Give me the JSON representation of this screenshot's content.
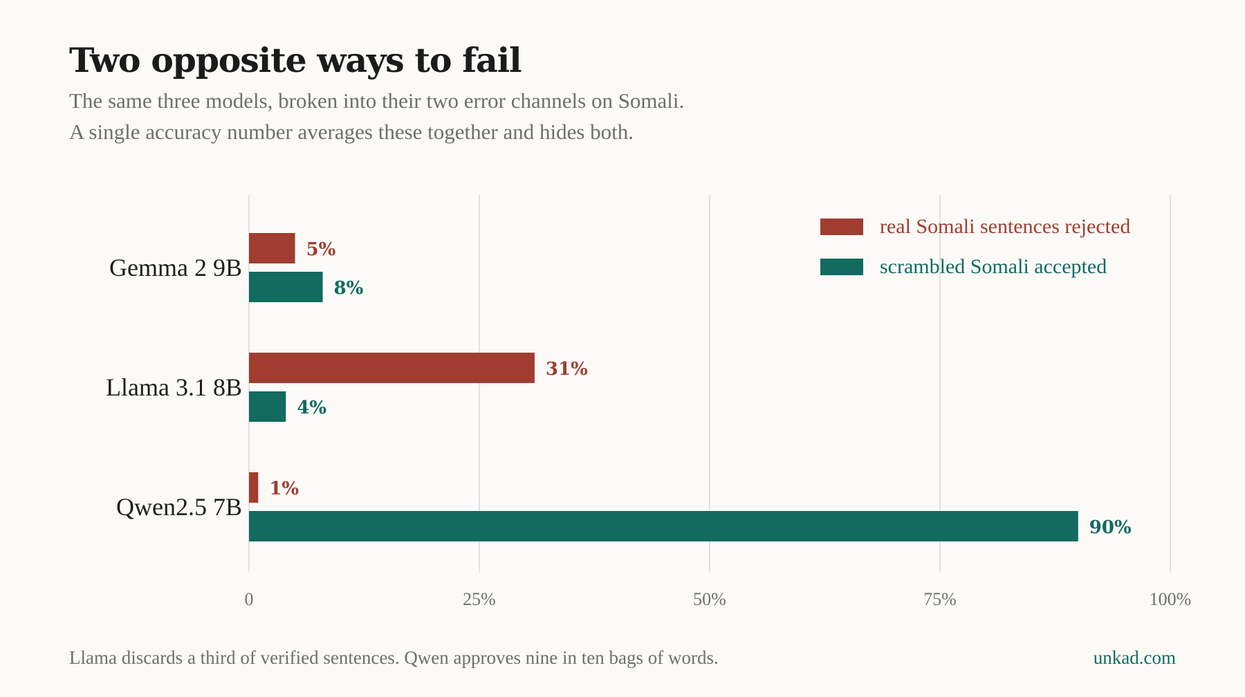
{
  "title": "Two opposite ways to fail",
  "subtitle_line1": "The same three models, broken into their two error channels on Somali.",
  "subtitle_line2": "A single accuracy number averages these together and hides both.",
  "footer": {
    "note": "Llama discards a third of verified sentences. Qwen approves nine in ten bags of words.",
    "brand": "unkad.com"
  },
  "colors": {
    "rejected": "#a03d30",
    "accepted": "#116b5e"
  },
  "chart_data": {
    "type": "bar",
    "orientation": "horizontal",
    "categories": [
      "Gemma 2 9B",
      "Llama 3.1 8B",
      "Qwen2.5 7B"
    ],
    "series": [
      {
        "name": "real Somali sentences rejected",
        "values": [
          5,
          31,
          1
        ],
        "labels": [
          "5%",
          "31%",
          "1%"
        ]
      },
      {
        "name": "scrambled Somali accepted",
        "values": [
          8,
          4,
          90
        ],
        "labels": [
          "8%",
          "4%",
          "90%"
        ]
      }
    ],
    "xlim": [
      0,
      100
    ],
    "xticks": [
      0,
      25,
      50,
      75,
      100
    ],
    "xtick_labels": [
      "0",
      "25%",
      "50%",
      "75%",
      "100%"
    ],
    "grid": "vertical",
    "legend_position": "top-right"
  }
}
